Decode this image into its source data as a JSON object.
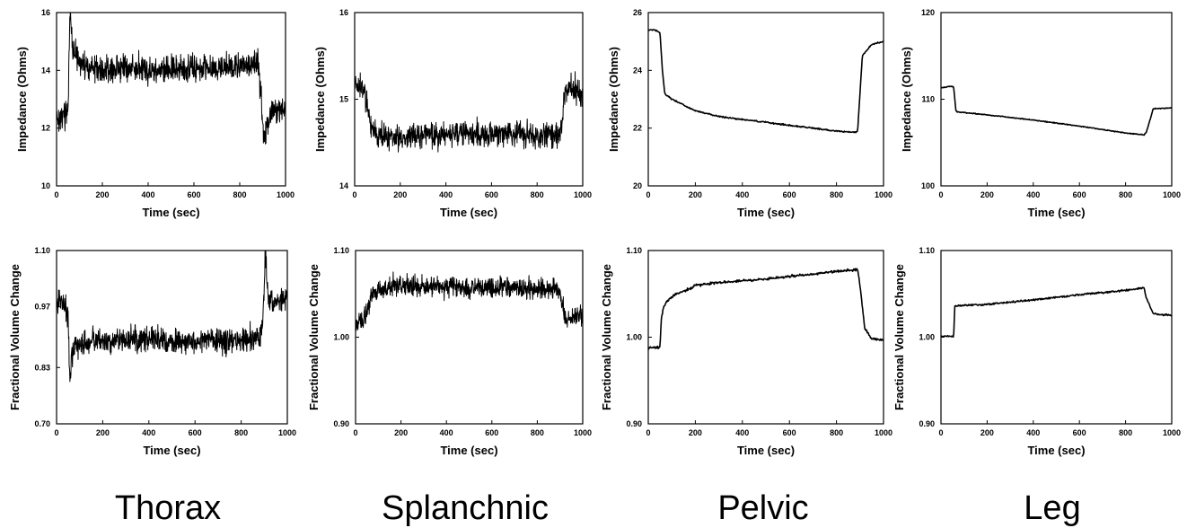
{
  "column_titles": [
    "Thorax",
    "Splanchnic",
    "Pelvic",
    "Leg"
  ],
  "chart_data": [
    {
      "type": "line",
      "region": "Thorax",
      "row": "impedance",
      "xlabel": "Time (sec)",
      "ylabel": "Impedance (Ohms)",
      "xlim": [
        0,
        1000
      ],
      "ylim": [
        10,
        16
      ],
      "xticks": [
        "0",
        "200",
        "400",
        "600",
        "800",
        "1000"
      ],
      "yticks": [
        "10",
        "12",
        "14",
        "16"
      ],
      "series": [
        {
          "style": "noisy",
          "x": [
            0,
            10,
            30,
            50,
            55,
            60,
            70,
            100,
            200,
            300,
            400,
            500,
            600,
            700,
            800,
            880,
            895,
            905,
            915,
            930,
            960,
            1000
          ],
          "y": [
            12.5,
            12.3,
            12.4,
            12.7,
            14.6,
            16.0,
            14.8,
            14.2,
            14.0,
            14.1,
            14.0,
            14.0,
            14.1,
            14.1,
            14.1,
            14.3,
            13.0,
            11.5,
            12.0,
            12.4,
            12.6,
            12.7
          ],
          "noise": 0.22
        }
      ]
    },
    {
      "type": "line",
      "region": "Splanchnic",
      "row": "impedance",
      "xlabel": "Time (sec)",
      "ylabel": "Impedance (Ohms)",
      "xlim": [
        0,
        1000
      ],
      "ylim": [
        14,
        16
      ],
      "xticks": [
        "0",
        "200",
        "400",
        "600",
        "800",
        "1000"
      ],
      "yticks": [
        "14",
        "15",
        "16"
      ],
      "series": [
        {
          "style": "noisy",
          "x": [
            0,
            20,
            40,
            60,
            70,
            100,
            200,
            300,
            400,
            500,
            600,
            700,
            800,
            900,
            920,
            940,
            970,
            1000
          ],
          "y": [
            15.2,
            15.15,
            15.1,
            14.9,
            14.65,
            14.6,
            14.55,
            14.6,
            14.6,
            14.6,
            14.6,
            14.6,
            14.58,
            14.6,
            15.05,
            15.15,
            15.1,
            15.05
          ],
          "noise": 0.07
        }
      ]
    },
    {
      "type": "line",
      "region": "Pelvic",
      "row": "impedance",
      "xlabel": "Time (sec)",
      "ylabel": "Impedance (Ohms)",
      "xlim": [
        0,
        1000
      ],
      "ylim": [
        20,
        26
      ],
      "xticks": [
        "0",
        "200",
        "400",
        "600",
        "800",
        "1000"
      ],
      "yticks": [
        "20",
        "22",
        "24",
        "26"
      ],
      "series": [
        {
          "style": "smooth",
          "x": [
            0,
            30,
            50,
            60,
            70,
            100,
            150,
            200,
            300,
            400,
            500,
            600,
            700,
            800,
            880,
            890,
            910,
            950,
            1000
          ],
          "y": [
            25.4,
            25.4,
            25.3,
            24.0,
            23.2,
            23.0,
            22.8,
            22.6,
            22.4,
            22.3,
            22.2,
            22.1,
            22.0,
            21.9,
            21.85,
            21.9,
            24.5,
            24.9,
            25.0
          ],
          "noise": 0.02
        }
      ]
    },
    {
      "type": "line",
      "region": "Leg",
      "row": "impedance",
      "xlabel": "Time (sec)",
      "ylabel": "Impedance (Ohms)",
      "xlim": [
        0,
        1000
      ],
      "ylim": [
        100,
        120
      ],
      "xticks": [
        "0",
        "200",
        "400",
        "600",
        "800",
        "1000"
      ],
      "yticks": [
        "100",
        "110",
        "120"
      ],
      "series": [
        {
          "style": "smooth",
          "x": [
            0,
            40,
            55,
            65,
            80,
            200,
            400,
            600,
            800,
            880,
            890,
            920,
            1000
          ],
          "y": [
            111.3,
            111.5,
            111.4,
            108.6,
            108.5,
            108.2,
            107.6,
            106.9,
            106.1,
            105.9,
            106.2,
            108.9,
            109.0
          ],
          "noise": 0.04
        }
      ]
    },
    {
      "type": "line",
      "region": "Thorax",
      "row": "volume",
      "xlabel": "Time (sec)",
      "ylabel": "Fractional Volume Change",
      "xlim": [
        0,
        1000
      ],
      "ylim": [
        0.7,
        1.1
      ],
      "xticks": [
        "0",
        "200",
        "400",
        "600",
        "800",
        "1000"
      ],
      "yticks": [
        "0.70",
        "0.83",
        "0.97",
        "1.10"
      ],
      "series": [
        {
          "style": "noisy",
          "x": [
            0,
            20,
            50,
            58,
            65,
            80,
            100,
            200,
            300,
            400,
            500,
            600,
            700,
            800,
            880,
            895,
            905,
            915,
            930,
            960,
            1000
          ],
          "y": [
            0.98,
            0.99,
            0.96,
            0.8,
            0.86,
            0.88,
            0.885,
            0.89,
            0.895,
            0.895,
            0.89,
            0.89,
            0.895,
            0.89,
            0.9,
            0.95,
            1.1,
            1.0,
            0.985,
            0.98,
            0.98
          ],
          "noise": 0.014
        }
      ]
    },
    {
      "type": "line",
      "region": "Splanchnic",
      "row": "volume",
      "xlabel": "Time (sec)",
      "ylabel": "Fractional Volume Change",
      "xlim": [
        0,
        1000
      ],
      "ylim": [
        0.9,
        1.1
      ],
      "xticks": [
        "0",
        "200",
        "400",
        "600",
        "800",
        "1000"
      ],
      "yticks": [
        "0.90",
        "1.00",
        "1.10"
      ],
      "series": [
        {
          "style": "noisy",
          "x": [
            0,
            30,
            55,
            70,
            100,
            200,
            300,
            400,
            500,
            600,
            700,
            800,
            900,
            915,
            930,
            960,
            1000
          ],
          "y": [
            1.015,
            1.02,
            1.03,
            1.05,
            1.055,
            1.06,
            1.058,
            1.058,
            1.057,
            1.057,
            1.057,
            1.056,
            1.055,
            1.03,
            1.02,
            1.022,
            1.025
          ],
          "noise": 0.0055
        }
      ]
    },
    {
      "type": "line",
      "region": "Pelvic",
      "row": "volume",
      "xlabel": "Time (sec)",
      "ylabel": "Fractional Volume Change",
      "xlim": [
        0,
        1000
      ],
      "ylim": [
        0.9,
        1.1
      ],
      "xticks": [
        "0",
        "200",
        "400",
        "600",
        "800",
        "1000"
      ],
      "yticks": [
        "0.90",
        "1.00",
        "1.10"
      ],
      "series": [
        {
          "style": "smooth",
          "x": [
            0,
            50,
            55,
            65,
            80,
            120,
            180,
            200,
            300,
            400,
            500,
            600,
            700,
            800,
            890,
            900,
            920,
            950,
            1000
          ],
          "y": [
            0.988,
            0.988,
            1.02,
            1.035,
            1.042,
            1.05,
            1.056,
            1.06,
            1.063,
            1.065,
            1.067,
            1.07,
            1.073,
            1.076,
            1.078,
            1.06,
            1.01,
            0.998,
            0.997
          ],
          "noise": 0.0012
        }
      ]
    },
    {
      "type": "line",
      "region": "Leg",
      "row": "volume",
      "xlabel": "Time (sec)",
      "ylabel": "Fractional Volume Change",
      "xlim": [
        0,
        1000
      ],
      "ylim": [
        0.9,
        1.1
      ],
      "xticks": [
        "0",
        "200",
        "400",
        "600",
        "800",
        "1000"
      ],
      "yticks": [
        "0.90",
        "1.00",
        "1.10"
      ],
      "series": [
        {
          "style": "smooth",
          "x": [
            0,
            55,
            60,
            70,
            200,
            400,
            600,
            800,
            880,
            890,
            920,
            1000
          ],
          "y": [
            1.001,
            1.001,
            1.036,
            1.036,
            1.038,
            1.043,
            1.049,
            1.054,
            1.057,
            1.045,
            1.027,
            1.025
          ],
          "noise": 0.0008
        }
      ]
    }
  ]
}
